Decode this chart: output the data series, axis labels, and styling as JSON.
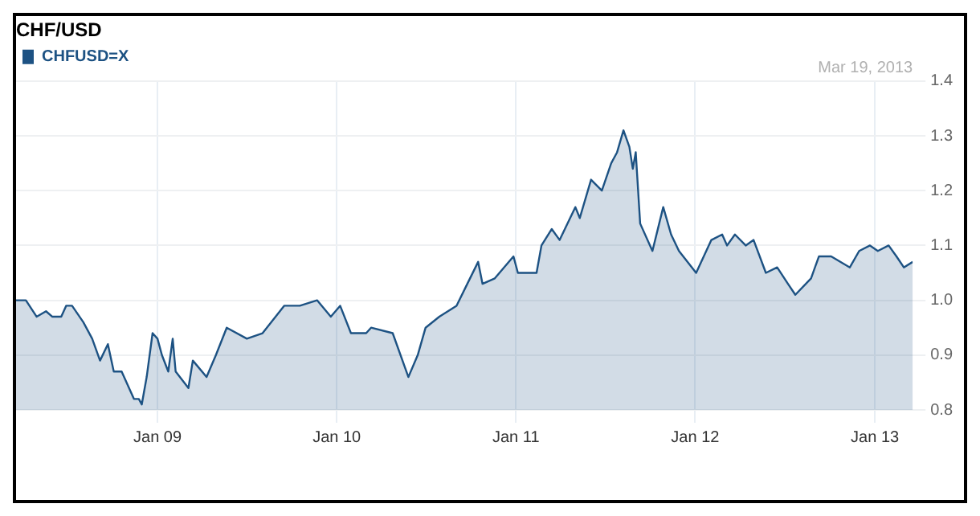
{
  "chart_data": {
    "type": "area",
    "title": "CHF/USD",
    "annotations": [
      "Mar 19, 2013"
    ],
    "legend": "top left",
    "grid": true,
    "xlim": [
      "2008-03-19",
      "2013-03-19"
    ],
    "xticks": [
      {
        "value": "2009-01-01",
        "label": "Jan 09"
      },
      {
        "value": "2010-01-01",
        "label": "Jan 10"
      },
      {
        "value": "2011-01-01",
        "label": "Jan 11"
      },
      {
        "value": "2012-01-01",
        "label": "Jan 12"
      },
      {
        "value": "2013-01-01",
        "label": "Jan 13"
      }
    ],
    "ylim": [
      0.8,
      1.4
    ],
    "yticks": [
      0.8,
      0.9,
      {
        "value": 1,
        "label": "1.0"
      },
      1.1,
      1.2,
      1.3,
      1.4
    ],
    "x": [
      "2008-03-19",
      "2008-04-08",
      "2008-04-30",
      "2008-05-19",
      "2008-06-01",
      "2008-06-19",
      "2008-06-29",
      "2008-07-11",
      "2008-08-03",
      "2008-08-21",
      "2008-09-06",
      "2008-09-22",
      "2008-10-04",
      "2008-10-20",
      "2008-11-14",
      "2008-11-24",
      "2008-11-30",
      "2008-12-10",
      "2008-12-22",
      "2009-01-01",
      "2009-01-10",
      "2009-01-23",
      "2009-02-01",
      "2009-02-07",
      "2009-03-05",
      "2009-03-14",
      "2009-04-11",
      "2009-04-30",
      "2009-05-22",
      "2009-07-02",
      "2009-08-03",
      "2009-09-16",
      "2009-10-18",
      "2009-11-22",
      "2009-12-20",
      "2010-01-08",
      "2010-01-30",
      "2010-03-02",
      "2010-03-12",
      "2010-04-25",
      "2010-05-27",
      "2010-06-15",
      "2010-07-01",
      "2010-07-29",
      "2010-09-02",
      "2010-09-24",
      "2010-10-16",
      "2010-10-25",
      "2010-11-19",
      "2010-12-27",
      "2011-01-05",
      "2011-02-12",
      "2011-02-22",
      "2011-03-15",
      "2011-03-31",
      "2011-05-02",
      "2011-05-11",
      "2011-06-03",
      "2011-06-25",
      "2011-07-14",
      "2011-07-26",
      "2011-08-08",
      "2011-08-20",
      "2011-08-27",
      "2011-09-02",
      "2011-09-11",
      "2011-10-06",
      "2011-10-28",
      "2011-11-13",
      "2011-11-29",
      "2012-01-03",
      "2012-02-03",
      "2012-02-25",
      "2012-03-06",
      "2012-03-22",
      "2012-04-13",
      "2012-04-29",
      "2012-05-24",
      "2012-06-16",
      "2012-07-08",
      "2012-07-23",
      "2012-08-24",
      "2012-09-09",
      "2012-10-04",
      "2012-11-11",
      "2012-11-30",
      "2012-12-22",
      "2013-01-07",
      "2013-01-29",
      "2013-02-14",
      "2013-03-01",
      "2013-03-19"
    ],
    "series": [
      {
        "name": "CHFUSD=X",
        "color": "#1d5283",
        "values": [
          1.0,
          1.0,
          0.97,
          0.98,
          0.97,
          0.97,
          0.99,
          0.99,
          0.96,
          0.93,
          0.89,
          0.92,
          0.87,
          0.87,
          0.82,
          0.82,
          0.81,
          0.86,
          0.94,
          0.93,
          0.9,
          0.87,
          0.93,
          0.87,
          0.84,
          0.89,
          0.86,
          0.9,
          0.95,
          0.93,
          0.94,
          0.99,
          0.99,
          1.0,
          0.97,
          0.99,
          0.94,
          0.94,
          0.95,
          0.94,
          0.86,
          0.9,
          0.95,
          0.97,
          0.99,
          1.03,
          1.07,
          1.03,
          1.04,
          1.08,
          1.05,
          1.05,
          1.1,
          1.13,
          1.11,
          1.17,
          1.15,
          1.22,
          1.2,
          1.25,
          1.27,
          1.31,
          1.28,
          1.24,
          1.27,
          1.14,
          1.09,
          1.17,
          1.12,
          1.09,
          1.05,
          1.11,
          1.12,
          1.1,
          1.12,
          1.1,
          1.11,
          1.05,
          1.06,
          1.03,
          1.01,
          1.04,
          1.08,
          1.08,
          1.06,
          1.09,
          1.1,
          1.09,
          1.1,
          1.08,
          1.06,
          1.07
        ]
      }
    ]
  }
}
